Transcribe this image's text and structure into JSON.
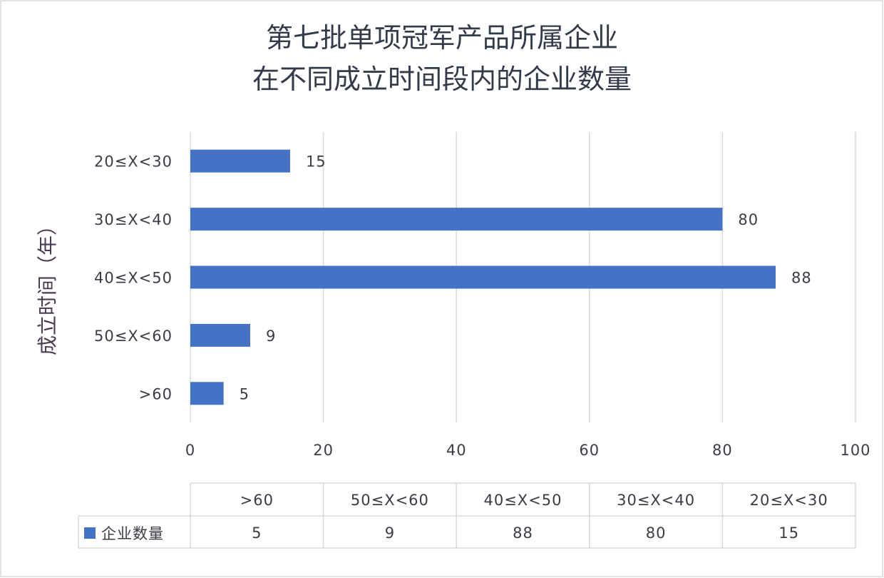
{
  "chart_data": {
    "type": "bar",
    "orientation": "horizontal",
    "title_lines": [
      "第七批单项冠军产品所属企业",
      "在不同成立时间段内的企业数量"
    ],
    "ylabel": "成立时间（年）",
    "xlabel": "",
    "categories": [
      "20≤X<30",
      "30≤X<40",
      "40≤X<50",
      "50≤X<60",
      ">60"
    ],
    "series": [
      {
        "name": "企业数量",
        "values": [
          15,
          80,
          88,
          9,
          5
        ]
      }
    ],
    "xlim": [
      0,
      100
    ],
    "xticks": [
      "0",
      "20",
      "40",
      "60",
      "80",
      "100"
    ],
    "grid": true,
    "data_labels": true,
    "data_table": {
      "columns": [
        ">60",
        "50≤X<60",
        "40≤X<50",
        "30≤X<40",
        "20≤X<30"
      ],
      "row_label": "企业数量",
      "values": [
        "5",
        "9",
        "88",
        "80",
        "15"
      ]
    },
    "colors": {
      "bar": "#4472c4",
      "grid": "#d9d9d9",
      "text": "#3c3c46"
    }
  }
}
